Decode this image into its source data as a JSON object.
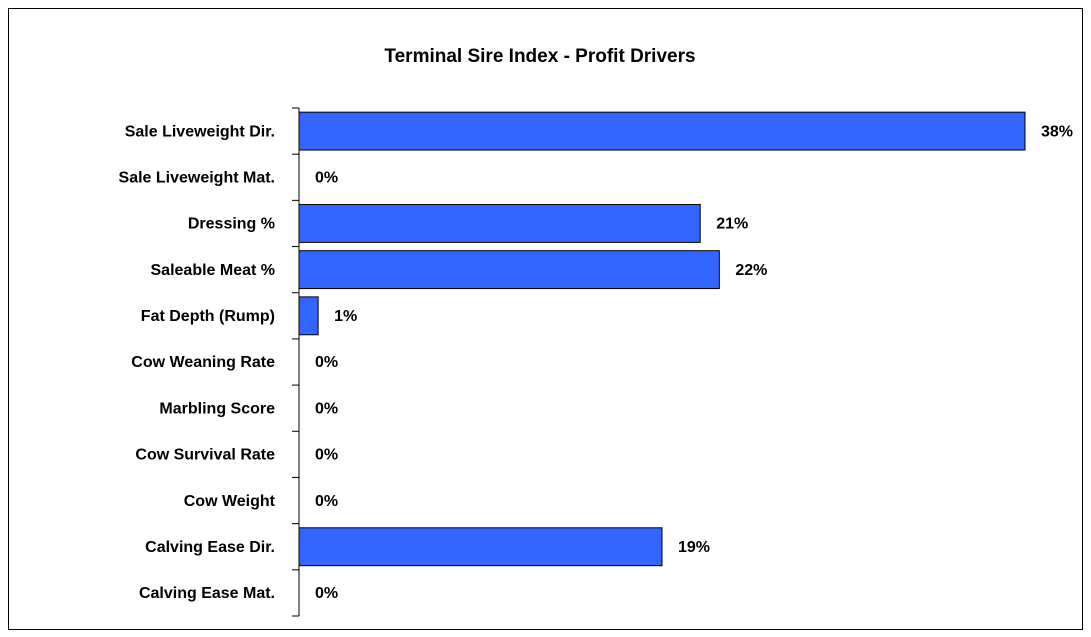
{
  "chart_data": {
    "type": "bar",
    "orientation": "horizontal",
    "title": "Terminal Sire Index - Profit Drivers",
    "categories": [
      "Sale Liveweight Dir.",
      "Sale Liveweight Mat.",
      "Dressing %",
      "Saleable Meat %",
      "Fat Depth (Rump)",
      "Cow Weaning Rate",
      "Marbling Score",
      "Cow Survival Rate",
      "Cow Weight",
      "Calving Ease Dir.",
      "Calving Ease Mat."
    ],
    "values": [
      38,
      0,
      21,
      22,
      1,
      0,
      0,
      0,
      0,
      19,
      0
    ],
    "value_labels": [
      "38%",
      "0%",
      "21%",
      "22%",
      "1%",
      "0%",
      "0%",
      "0%",
      "0%",
      "19%",
      "0%"
    ],
    "color": "#3366ff",
    "xlim": [
      0,
      38
    ]
  }
}
